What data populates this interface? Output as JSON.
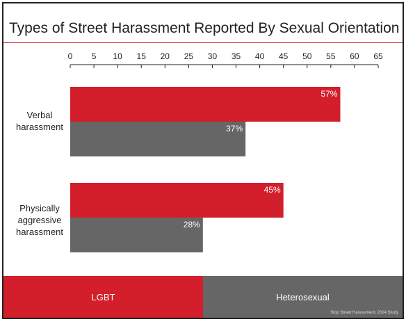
{
  "chart_data": {
    "type": "bar",
    "orientation": "horizontal",
    "title": "Types of Street Harassment Reported By Sexual Orientation",
    "categories": [
      "Verbal harassment",
      "Physically aggressive harassment"
    ],
    "category_lines": [
      [
        "Verbal",
        "harassment"
      ],
      [
        "Physically",
        "aggressive",
        "harassment"
      ]
    ],
    "series": [
      {
        "name": "LGBT",
        "color": "#d21f2b",
        "values": [
          57,
          45
        ],
        "labels": [
          "57%",
          "45%"
        ]
      },
      {
        "name": "Heterosexual",
        "color": "#666666",
        "values": [
          37,
          28
        ],
        "labels": [
          "37%",
          "28%"
        ]
      }
    ],
    "xlim": [
      0,
      65
    ],
    "xticks": [
      0,
      5,
      10,
      15,
      20,
      25,
      30,
      35,
      40,
      45,
      50,
      55,
      60,
      65
    ],
    "legend_position": "bottom",
    "source": "Stop Street Harassment, 2014 Study"
  }
}
